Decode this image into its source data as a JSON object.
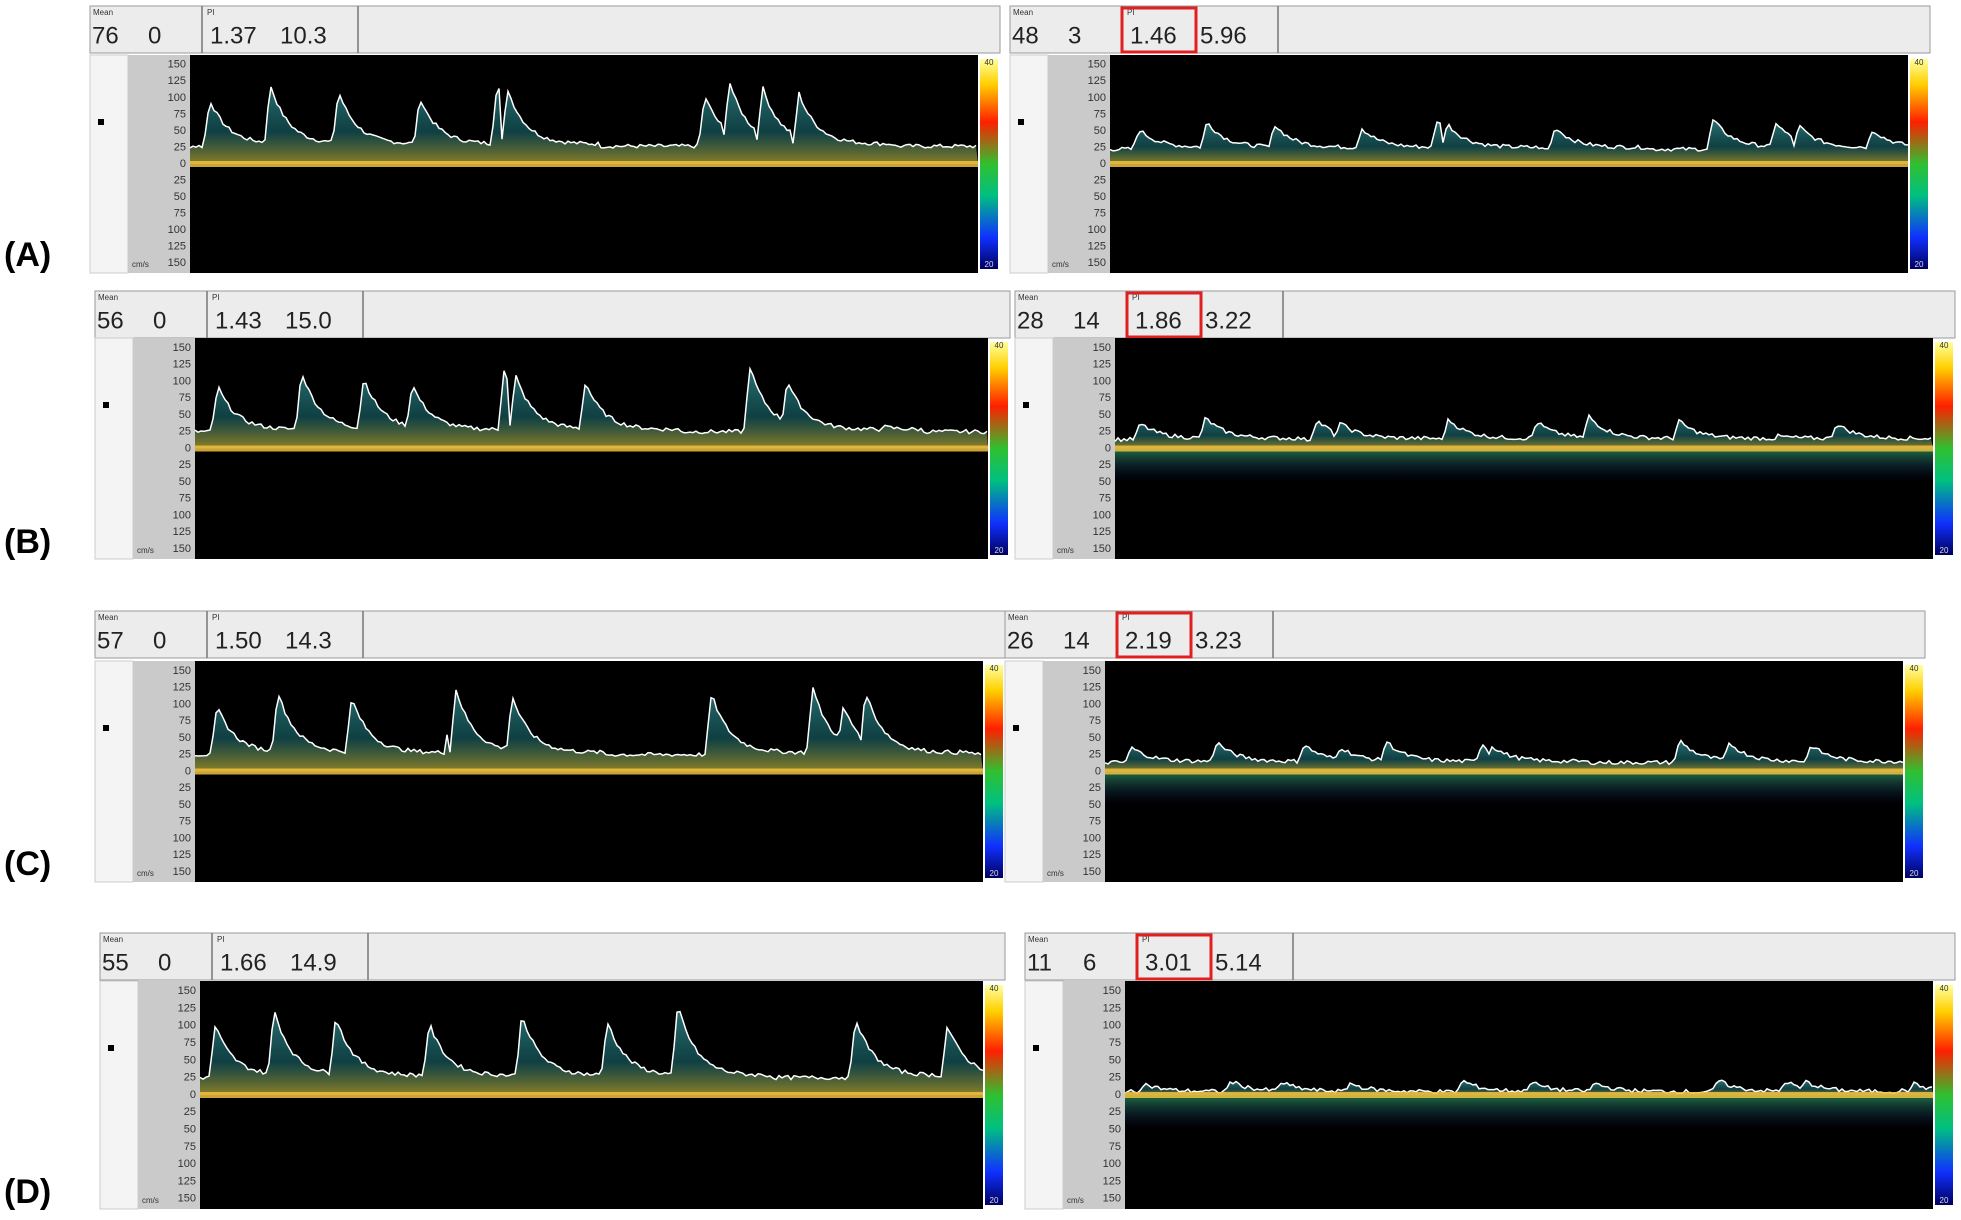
{
  "rows": [
    {
      "label": "(A)",
      "panels": [
        {
          "mean_label": "Mean",
          "values": [
            "76",
            "0"
          ],
          "pi_label": "PI",
          "pi": "1.37",
          "ri": "10.3"
        },
        {
          "mean_label": "Mean",
          "values": [
            "48",
            "3"
          ],
          "pi_label": "PI",
          "pi": "1.46",
          "ri": "5.96"
        }
      ]
    },
    {
      "label": "(B)",
      "panels": [
        {
          "mean_label": "Mean",
          "values": [
            "56",
            "0"
          ],
          "pi_label": "PI",
          "pi": "1.43",
          "ri": "15.0"
        },
        {
          "mean_label": "Mean",
          "values": [
            "28",
            "14"
          ],
          "pi_label": "PI",
          "pi": "1.86",
          "ri": "3.22"
        }
      ]
    },
    {
      "label": "(C)",
      "panels": [
        {
          "mean_label": "Mean",
          "values": [
            "57",
            "0"
          ],
          "pi_label": "PI",
          "pi": "1.50",
          "ri": "14.3"
        },
        {
          "mean_label": "Mean",
          "values": [
            "26",
            "14"
          ],
          "pi_label": "PI",
          "pi": "2.19",
          "ri": "3.23"
        }
      ]
    },
    {
      "label": "(D)",
      "panels": [
        {
          "mean_label": "Mean",
          "values": [
            "55",
            "0"
          ],
          "pi_label": "PI",
          "pi": "1.66",
          "ri": "14.9"
        },
        {
          "mean_label": "Mean",
          "values": [
            "11",
            "6"
          ],
          "pi_label": "PI",
          "pi": "3.01",
          "ri": "5.14"
        }
      ]
    }
  ],
  "scale": {
    "ticks": [
      150,
      125,
      100,
      75,
      50,
      25,
      0,
      25,
      50,
      75,
      100,
      125,
      150
    ],
    "unit": "cm/s"
  },
  "colorbar": {
    "top": "40",
    "bottom": "20"
  }
}
